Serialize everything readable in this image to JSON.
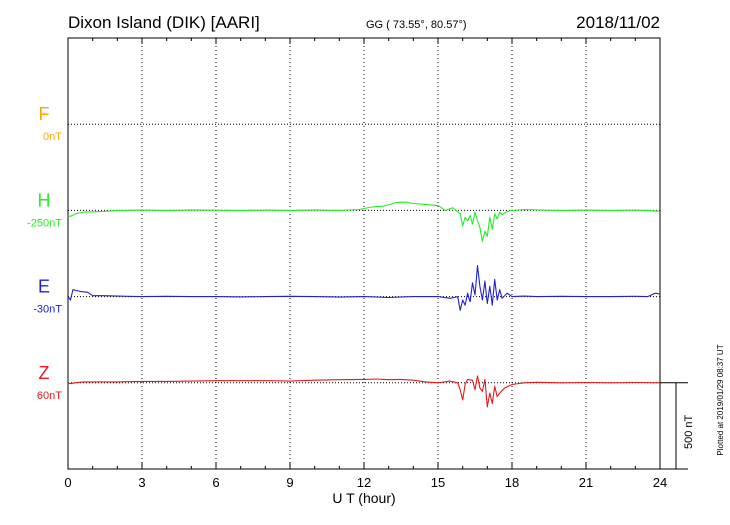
{
  "header": {
    "station": "Dixon Island (DIK)  [AARI]",
    "coords": "GG ( 73.55°,  80.57°)",
    "date": "2018/11/02"
  },
  "footer": {
    "xlabel": "U T (hour)",
    "plotted": "Plotted at 2019/01/29 08:37 UT"
  },
  "scale_bar": {
    "label": "500 nT",
    "value_nT": 500
  },
  "chart_data": {
    "type": "line",
    "xlim": [
      0,
      24
    ],
    "x_ticks": [
      0,
      3,
      6,
      9,
      12,
      15,
      18,
      21,
      24
    ],
    "grid": true,
    "series": [
      {
        "name": "F",
        "baseline_label": "0nT",
        "color": "#FFA500",
        "baseline_index": 1,
        "x": [],
        "y": []
      },
      {
        "name": "H",
        "baseline_label": "-250nT",
        "color": "#22EE22",
        "baseline_index": 2,
        "x": [
          0,
          0.1,
          0.3,
          0.6,
          1.0,
          1.5,
          2.0,
          3.0,
          4.0,
          5.0,
          6.0,
          7.0,
          8.0,
          9.0,
          10.0,
          11.0,
          11.8,
          12.3,
          12.8,
          13.3,
          13.7,
          14.0,
          14.5,
          15.0,
          15.3,
          15.6,
          15.9,
          16.0,
          16.1,
          16.2,
          16.3,
          16.4,
          16.5,
          16.6,
          16.7,
          16.8,
          16.9,
          17.0,
          17.1,
          17.2,
          17.3,
          17.4,
          17.5,
          17.6,
          17.8,
          18.0,
          18.5,
          19.0,
          20.0,
          21.0,
          22.0,
          23.0,
          23.5,
          24.0
        ],
        "y": [
          -30,
          -35,
          -20,
          -10,
          -8,
          -5,
          0,
          2,
          0,
          3,
          1,
          0,
          2,
          0,
          3,
          0,
          5,
          20,
          25,
          45,
          48,
          40,
          35,
          28,
          0,
          15,
          -20,
          -90,
          -40,
          -60,
          -30,
          -80,
          -10,
          -60,
          -100,
          -180,
          -120,
          -150,
          -40,
          -110,
          -20,
          -50,
          -10,
          -25,
          -5,
          0,
          5,
          3,
          0,
          2,
          0,
          2,
          0,
          -5
        ]
      },
      {
        "name": "E",
        "baseline_label": "-30nT",
        "color": "#1E24CC",
        "baseline_index": 3,
        "x": [
          0,
          0.1,
          0.2,
          0.5,
          0.8,
          1.0,
          1.5,
          2.0,
          3.0,
          4.0,
          5.0,
          6.0,
          7.0,
          8.0,
          9.0,
          10.0,
          11.0,
          12.0,
          13.0,
          14.0,
          15.0,
          15.5,
          15.8,
          15.9,
          16.0,
          16.1,
          16.2,
          16.3,
          16.4,
          16.5,
          16.6,
          16.7,
          16.8,
          16.9,
          17.0,
          17.1,
          17.2,
          17.3,
          17.4,
          17.5,
          17.6,
          17.8,
          18.0,
          18.5,
          19.0,
          20.0,
          21.0,
          22.0,
          23.0,
          23.5,
          23.8,
          24.0
        ],
        "y": [
          0,
          -20,
          40,
          30,
          25,
          5,
          5,
          3,
          0,
          2,
          0,
          0,
          -2,
          0,
          2,
          0,
          -3,
          0,
          -5,
          0,
          0,
          -10,
          0,
          -80,
          -20,
          -50,
          20,
          -30,
          80,
          10,
          180,
          60,
          -20,
          90,
          -40,
          60,
          -50,
          100,
          -20,
          40,
          -10,
          20,
          0,
          3,
          0,
          2,
          0,
          0,
          2,
          0,
          20,
          15
        ]
      },
      {
        "name": "Z",
        "baseline_label": "60nT",
        "color": "#E41A1C",
        "baseline_index": 4,
        "x": [
          0,
          0.1,
          0.3,
          0.6,
          1.0,
          2.0,
          3.0,
          4.0,
          5.0,
          6.0,
          7.0,
          8.0,
          9.0,
          10.0,
          11.0,
          12.0,
          12.5,
          13.0,
          13.5,
          14.0,
          14.5,
          15.0,
          15.5,
          15.8,
          15.9,
          16.0,
          16.1,
          16.2,
          16.4,
          16.5,
          16.6,
          16.7,
          16.8,
          16.9,
          17.0,
          17.1,
          17.2,
          17.3,
          17.4,
          17.5,
          17.7,
          18.0,
          18.5,
          19.0,
          20.0,
          21.0,
          22.0,
          23.0,
          24.0
        ],
        "y": [
          0,
          -5,
          0,
          5,
          5,
          5,
          8,
          8,
          10,
          12,
          12,
          12,
          10,
          15,
          18,
          20,
          22,
          18,
          20,
          15,
          5,
          0,
          10,
          0,
          -40,
          -100,
          -10,
          20,
          15,
          -40,
          40,
          -30,
          -50,
          20,
          -140,
          -60,
          -120,
          -20,
          -80,
          -60,
          -30,
          -10,
          0,
          3,
          0,
          2,
          0,
          2,
          0
        ]
      }
    ]
  }
}
